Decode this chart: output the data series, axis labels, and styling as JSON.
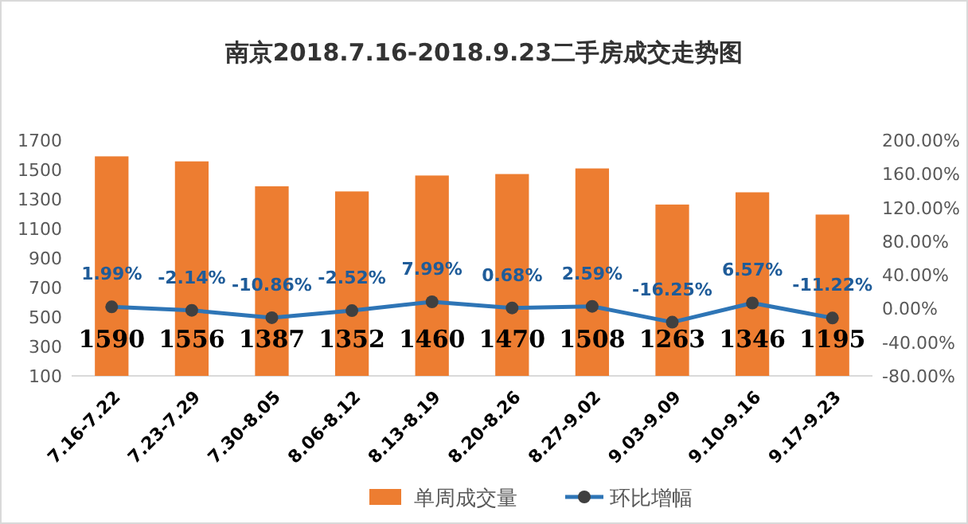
{
  "chart_data": {
    "type": "bar",
    "title": "南京2018.7.16-2018.9.23二手房成交走势图",
    "categories": [
      "7.16-7.22",
      "7.23-7.29",
      "7.30-8.05",
      "8.06-8.12",
      "8.13-8.19",
      "8.20-8.26",
      "8.27-9.02",
      "9.03-9.09",
      "9.10-9.16",
      "9.17-9.23"
    ],
    "series": [
      {
        "name": "单周成交量",
        "type": "bar",
        "color": "#ed7d31",
        "values": [
          1590,
          1556,
          1387,
          1352,
          1460,
          1470,
          1508,
          1263,
          1346,
          1195
        ]
      },
      {
        "name": "环比增幅",
        "type": "line",
        "axis": "y2",
        "color": "#2e75b6",
        "marker": "circle",
        "values": [
          1.99,
          -2.14,
          -10.86,
          -2.52,
          7.99,
          0.68,
          2.59,
          -16.25,
          6.57,
          -11.22
        ],
        "value_labels": [
          "1.99%",
          "-2.14%",
          "-10.86%",
          "-2.52%",
          "7.99%",
          "0.68%",
          "2.59%",
          "-16.25%",
          "6.57%",
          "-11.22%"
        ]
      }
    ],
    "ylim": [
      100,
      1700
    ],
    "yticks": [
      100,
      300,
      500,
      700,
      900,
      1100,
      1300,
      1500,
      1700
    ],
    "y2lim": [
      -80,
      200
    ],
    "y2ticks": [
      {
        "value": -80,
        "label": "-80.00%"
      },
      {
        "value": -40,
        "label": "-40.00%"
      },
      {
        "value": 0,
        "label": "0.00%"
      },
      {
        "value": 40,
        "label": "40.00%"
      },
      {
        "value": 80,
        "label": "80.00%"
      },
      {
        "value": 120,
        "label": "120.00%"
      },
      {
        "value": 160,
        "label": "160.00%"
      },
      {
        "value": 200,
        "label": "200.00%"
      }
    ],
    "data_labels": true,
    "grid": false,
    "legend": "bottom"
  }
}
